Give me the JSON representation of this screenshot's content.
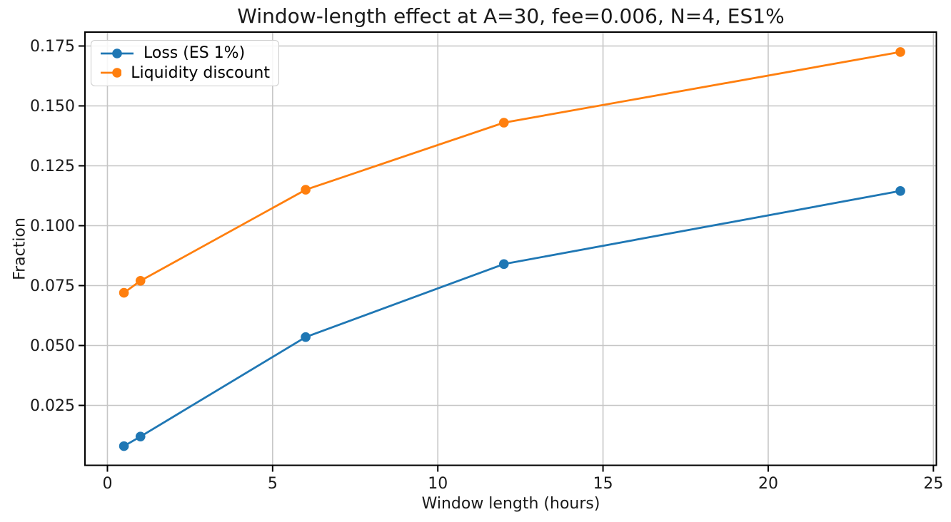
{
  "figure": {
    "title": "Window-length effect at A=30, fee=0.006, N=4, ES1%",
    "xlabel": "Window length (hours)",
    "ylabel": "Fraction"
  },
  "legend": {
    "position": "upper left",
    "items": [
      {
        "label": "Loss (ES 1%)",
        "color": "#1f77b4"
      },
      {
        "label": "Liquidity discount",
        "color": "#ff7f0e"
      }
    ]
  },
  "chart_data": {
    "type": "line",
    "title": "Window-length effect at A=30, fee=0.006, N=4, ES1%",
    "xlabel": "Window length (hours)",
    "ylabel": "Fraction",
    "x": [
      0.5,
      1,
      6,
      12,
      24
    ],
    "series": [
      {
        "name": "Loss (ES 1%)",
        "color": "#1f77b4",
        "values": [
          0.008,
          0.012,
          0.0535,
          0.084,
          0.1145
        ]
      },
      {
        "name": "Liquidity discount",
        "color": "#ff7f0e",
        "values": [
          0.072,
          0.077,
          0.115,
          0.143,
          0.1725
        ]
      }
    ],
    "xticks": [
      0,
      5,
      10,
      15,
      20,
      25
    ],
    "xtick_labels": [
      "0",
      "5",
      "10",
      "15",
      "20",
      "25"
    ],
    "yticks": [
      0.025,
      0.05,
      0.075,
      0.1,
      0.125,
      0.15,
      0.175
    ],
    "ytick_labels": [
      "0.025",
      "0.050",
      "0.075",
      "0.100",
      "0.125",
      "0.150",
      "0.175"
    ],
    "xlim": [
      -0.68,
      25.09
    ],
    "ylim": [
      0.0,
      0.1808
    ],
    "grid": true,
    "marker": "o",
    "styles": {
      "grid_color": "#c6c6c6",
      "spine_color": "#000000",
      "tick_color": "#000000",
      "text_color": "#1a1a1a",
      "line_width": 2.8,
      "marker_radius": 6.8
    }
  }
}
